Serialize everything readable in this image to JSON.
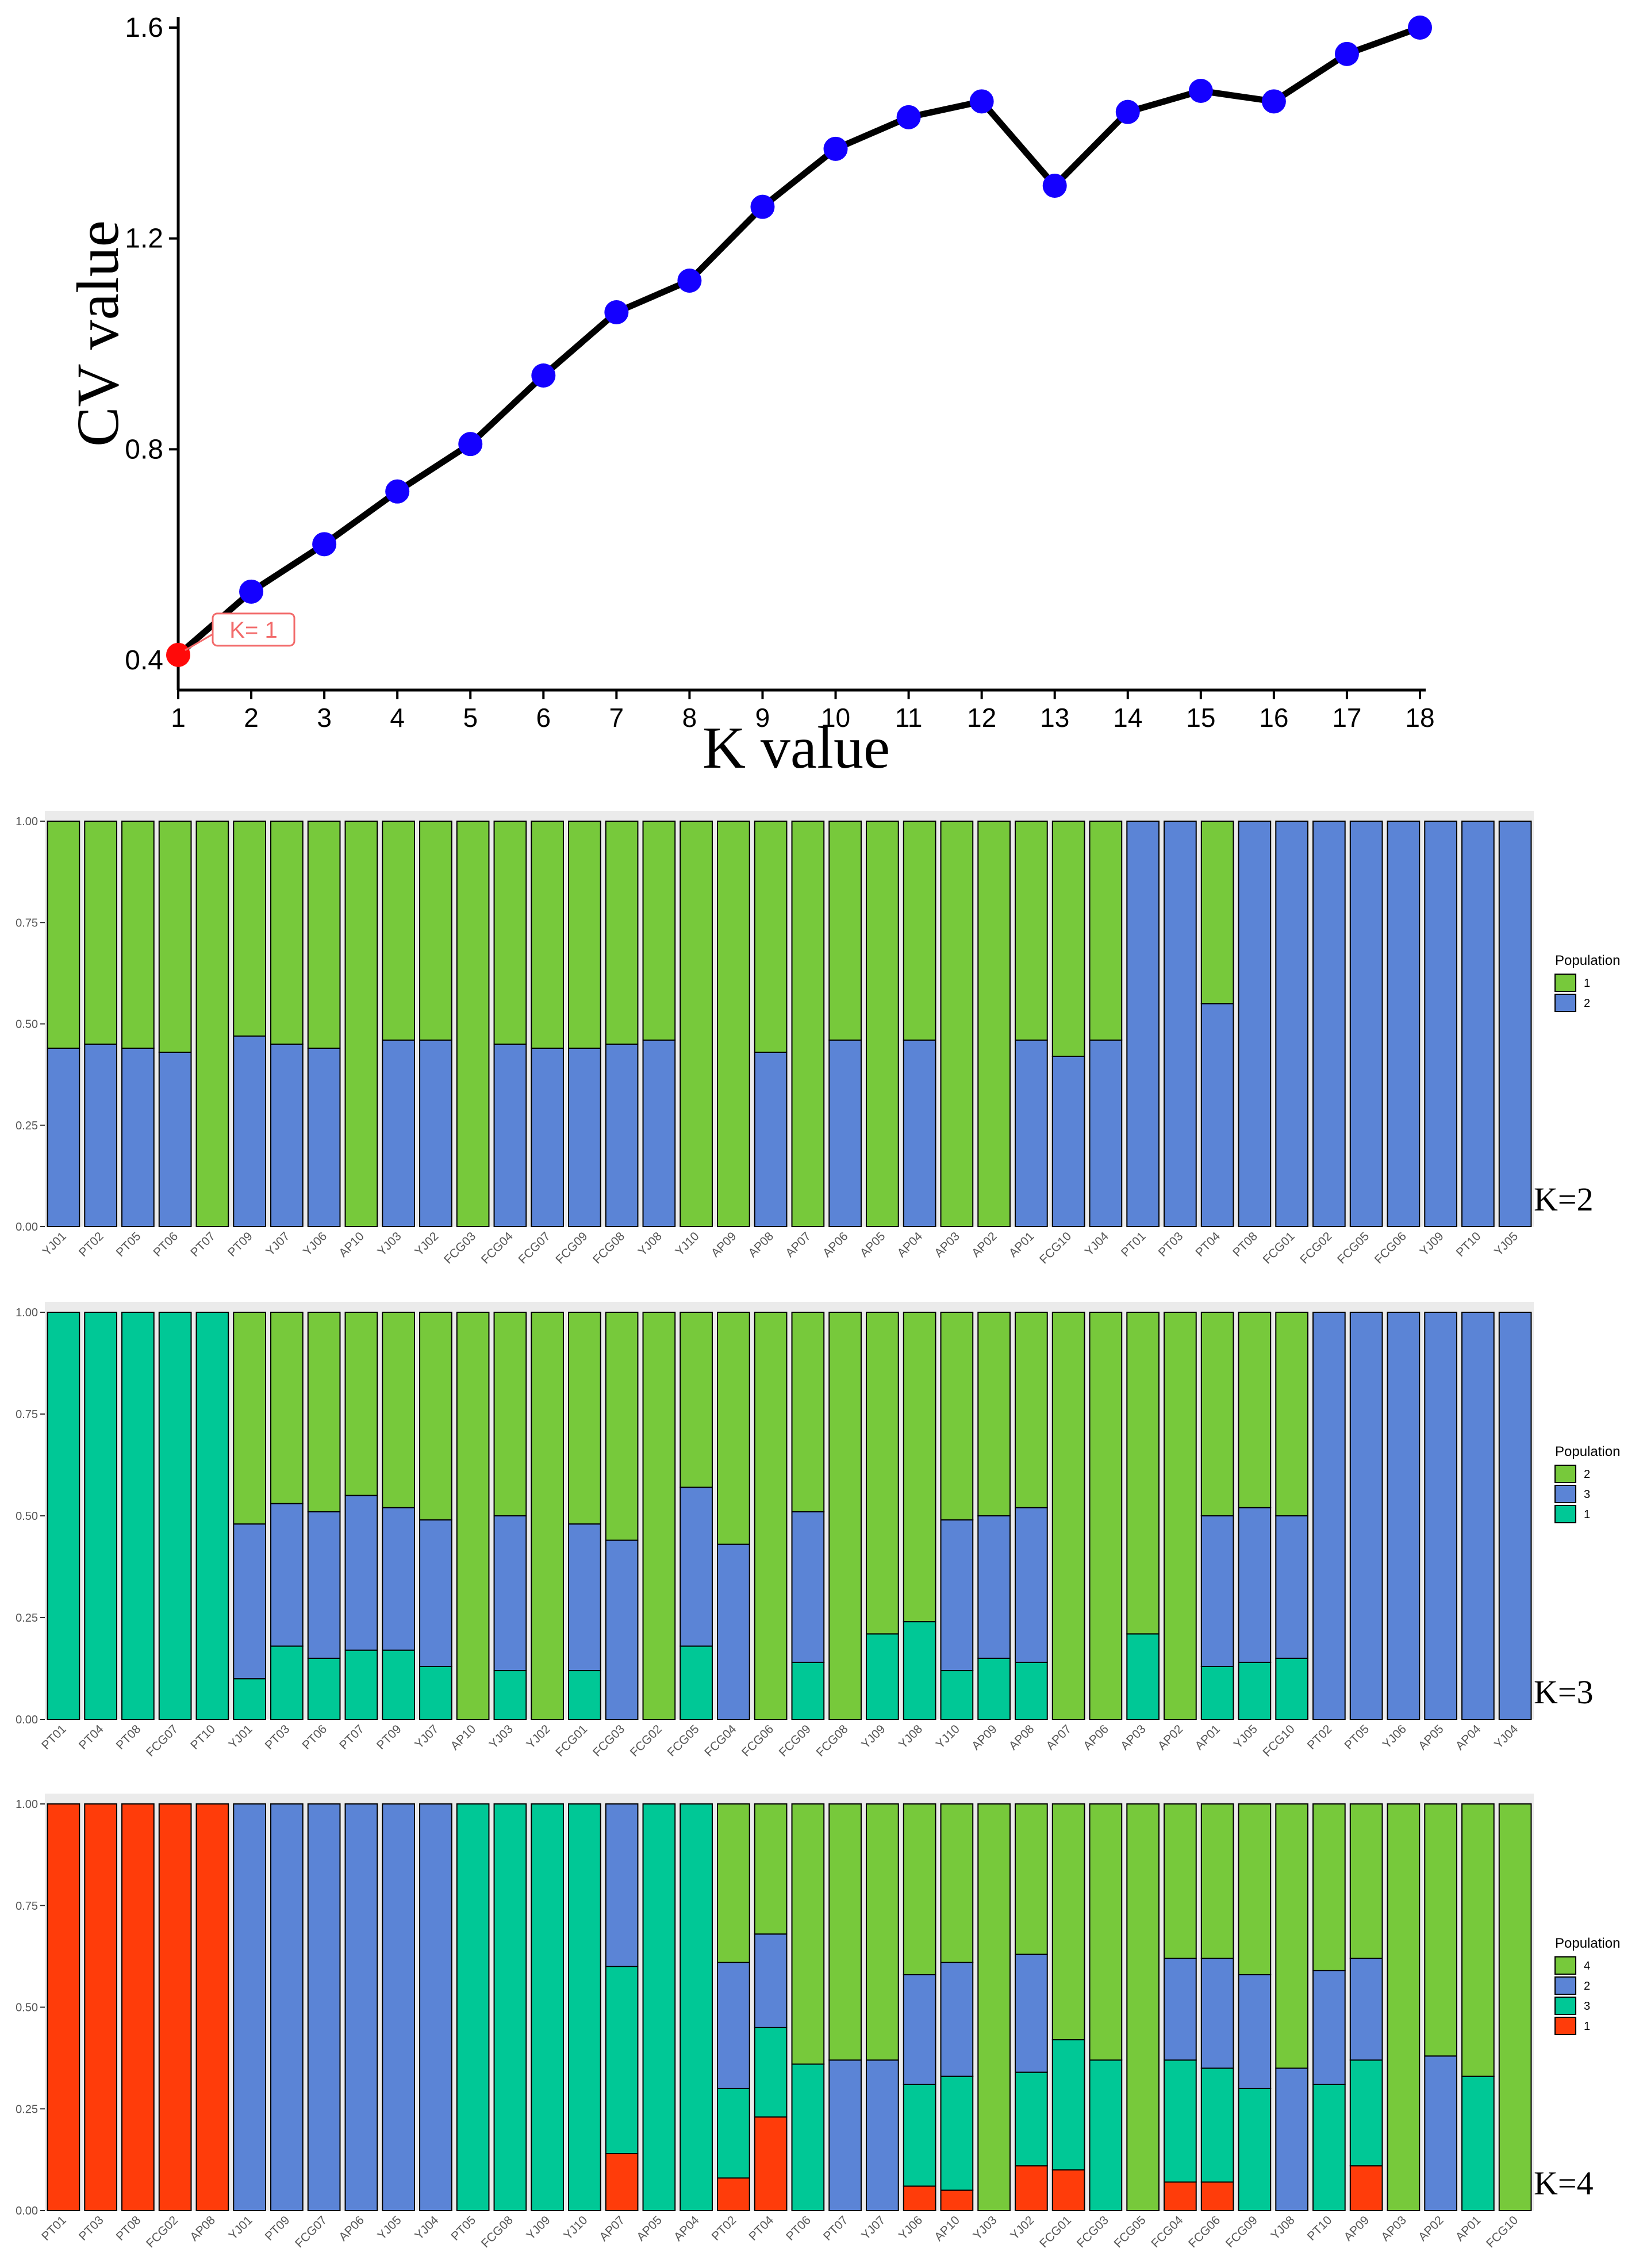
{
  "chart_data": [
    {
      "type": "line",
      "title": "",
      "xlabel": "K value",
      "ylabel": "CV value",
      "x": [
        1,
        2,
        3,
        4,
        5,
        6,
        7,
        8,
        9,
        10,
        11,
        12,
        13,
        14,
        15,
        16,
        17,
        18
      ],
      "y": [
        0.41,
        0.53,
        0.62,
        0.72,
        0.81,
        0.94,
        1.06,
        1.12,
        1.26,
        1.37,
        1.43,
        1.46,
        1.3,
        1.44,
        1.48,
        1.46,
        1.55,
        1.6
      ],
      "xlim": [
        1,
        18
      ],
      "ylim": [
        0.35,
        1.6
      ],
      "yticks": [
        "0.4",
        "0.8",
        "1.2",
        "1.6"
      ],
      "line_color": "#000000",
      "point_color": "#1400ff",
      "highlight_color": "#ff0a0a",
      "highlight_index": 0,
      "annotation": "K= 1",
      "annotation_color": "#f26a6a"
    },
    {
      "type": "bar",
      "stacked": true,
      "panel_label": "K=2",
      "ylim": [
        0,
        1
      ],
      "yticks": [
        "0.00",
        "0.25",
        "0.50",
        "0.75",
        "1.00"
      ],
      "legend": {
        "title": "Population",
        "entries": [
          {
            "label": "1",
            "color": "#77c93b"
          },
          {
            "label": "2",
            "color": "#5b84d6"
          }
        ]
      },
      "stack_order": [
        "2",
        "1"
      ],
      "categories": [
        "YJ01",
        "PT02",
        "PT05",
        "PT06",
        "PT07",
        "PT09",
        "YJ07",
        "YJ06",
        "AP10",
        "YJ03",
        "YJ02",
        "FCG03",
        "FCG04",
        "FCG07",
        "FCG09",
        "FCG08",
        "YJ08",
        "YJ10",
        "AP09",
        "AP08",
        "AP07",
        "AP06",
        "AP05",
        "AP04",
        "AP03",
        "AP02",
        "AP01",
        "FCG10",
        "YJ04",
        "PT01",
        "PT03",
        "PT04",
        "PT08",
        "FCG01",
        "FCG02",
        "FCG05",
        "FCG06",
        "YJ09",
        "PT10",
        "YJ05"
      ],
      "series": [
        {
          "name": "2",
          "values": [
            0.44,
            0.45,
            0.44,
            0.43,
            0,
            0.47,
            0.45,
            0.44,
            0,
            0.46,
            0.46,
            0,
            0.45,
            0.44,
            0.44,
            0.45,
            0.46,
            0,
            0,
            0.43,
            0,
            0.46,
            0,
            0.46,
            0,
            0,
            0.46,
            0.42,
            0.46,
            1,
            1,
            0.55,
            1,
            1,
            1,
            1,
            1,
            1,
            1,
            1
          ]
        },
        {
          "name": "1",
          "values": [
            0.56,
            0.55,
            0.56,
            0.57,
            1,
            0.53,
            0.55,
            0.56,
            1,
            0.54,
            0.54,
            1,
            0.55,
            0.56,
            0.56,
            0.55,
            0.54,
            1,
            1,
            0.57,
            1,
            0.54,
            1,
            0.54,
            1,
            1,
            0.54,
            0.58,
            0.54,
            0,
            0,
            0.45,
            0,
            0,
            0,
            0,
            0,
            0,
            0,
            0
          ]
        }
      ]
    },
    {
      "type": "bar",
      "stacked": true,
      "panel_label": "K=3",
      "ylim": [
        0,
        1
      ],
      "yticks": [
        "0.00",
        "0.25",
        "0.50",
        "0.75",
        "1.00"
      ],
      "legend": {
        "title": "Population",
        "entries": [
          {
            "label": "2",
            "color": "#77c93b"
          },
          {
            "label": "3",
            "color": "#5b84d6"
          },
          {
            "label": "1",
            "color": "#00c896"
          }
        ]
      },
      "stack_order": [
        "1",
        "3",
        "2"
      ],
      "categories": [
        "PT01",
        "PT04",
        "PT08",
        "FCG07",
        "PT10",
        "YJ01",
        "PT03",
        "PT06",
        "PT07",
        "PT09",
        "YJ07",
        "AP10",
        "YJ03",
        "YJ02",
        "FCG01",
        "FCG03",
        "FCG02",
        "FCG05",
        "FCG04",
        "FCG06",
        "FCG09",
        "FCG08",
        "YJ09",
        "YJ08",
        "YJ10",
        "AP09",
        "AP08",
        "AP07",
        "AP06",
        "AP03",
        "AP02",
        "AP01",
        "YJ05",
        "FCG10",
        "PT02",
        "PT05",
        "YJ06",
        "AP05",
        "AP04",
        "YJ04"
      ],
      "series": [
        {
          "name": "1",
          "values": [
            1,
            1,
            1,
            1,
            1,
            0.1,
            0.18,
            0.15,
            0.17,
            0.17,
            0.13,
            0,
            0.12,
            0,
            0.12,
            0,
            0,
            0.18,
            0,
            0,
            0.14,
            0,
            0.21,
            0.24,
            0.12,
            0.15,
            0.14,
            0,
            0,
            0.21,
            0,
            0.13,
            0.14,
            0.15,
            0,
            0,
            0,
            0,
            0,
            0
          ]
        },
        {
          "name": "3",
          "values": [
            0,
            0,
            0,
            0,
            0,
            0.38,
            0.35,
            0.36,
            0.38,
            0.35,
            0.36,
            0,
            0.38,
            0,
            0.36,
            0.44,
            0,
            0.39,
            0.43,
            0,
            0.37,
            0,
            0,
            0,
            0.37,
            0.35,
            0.38,
            0,
            0,
            0,
            0,
            0.37,
            0.38,
            0.35,
            1,
            1,
            1,
            1,
            1,
            1
          ]
        },
        {
          "name": "2",
          "values": [
            0,
            0,
            0,
            0,
            0,
            0.52,
            0.47,
            0.49,
            0.45,
            0.48,
            0.51,
            1,
            0.5,
            1,
            0.52,
            0.56,
            1,
            0.43,
            0.57,
            1,
            0.49,
            1,
            0.79,
            0.76,
            0.51,
            0.5,
            0.48,
            1,
            1,
            0.79,
            1,
            0.5,
            0.48,
            0.5,
            0,
            0,
            0,
            0,
            0,
            0
          ]
        }
      ]
    },
    {
      "type": "bar",
      "stacked": true,
      "panel_label": "K=4",
      "ylim": [
        0,
        1
      ],
      "yticks": [
        "0.00",
        "0.25",
        "0.50",
        "0.75",
        "1.00"
      ],
      "legend": {
        "title": "Population",
        "entries": [
          {
            "label": "4",
            "color": "#77c93b"
          },
          {
            "label": "2",
            "color": "#5b84d6"
          },
          {
            "label": "3",
            "color": "#00c896"
          },
          {
            "label": "1",
            "color": "#ff3c0a"
          }
        ]
      },
      "stack_order": [
        "1",
        "3",
        "2",
        "4"
      ],
      "categories": [
        "PT01",
        "PT03",
        "PT08",
        "FCG02",
        "AP08",
        "YJ01",
        "PT09",
        "FCG07",
        "AP06",
        "YJ05",
        "YJ04",
        "PT05",
        "FCG08",
        "YJ09",
        "YJ10",
        "AP07",
        "AP05",
        "AP04",
        "PT02",
        "PT04",
        "PT06",
        "PT07",
        "YJ07",
        "YJ06",
        "AP10",
        "YJ03",
        "YJ02",
        "FCG01",
        "FCG03",
        "FCG05",
        "FCG04",
        "FCG06",
        "FCG09",
        "YJ08",
        "PT10",
        "AP09",
        "AP03",
        "AP02",
        "AP01",
        "FCG10"
      ],
      "series": [
        {
          "name": "1",
          "values": [
            1,
            1,
            1,
            1,
            1,
            0,
            0,
            0,
            0,
            0,
            0,
            0,
            0,
            0,
            0,
            0.14,
            0,
            0,
            0.08,
            0.23,
            0,
            0,
            0,
            0.06,
            0.05,
            0,
            0.11,
            0.1,
            0,
            0,
            0.07,
            0.07,
            0,
            0,
            0,
            0.11,
            0,
            0,
            0,
            0
          ]
        },
        {
          "name": "3",
          "values": [
            0,
            0,
            0,
            0,
            0,
            0,
            0,
            0,
            0,
            0,
            0,
            1,
            1,
            1,
            1,
            0.46,
            1,
            1,
            0.22,
            0.22,
            0.36,
            0,
            0,
            0.25,
            0.28,
            0,
            0.23,
            0.32,
            0.37,
            0,
            0.3,
            0.28,
            0.3,
            0,
            0.31,
            0.26,
            0,
            0,
            0.33,
            0
          ]
        },
        {
          "name": "2",
          "values": [
            0,
            0,
            0,
            0,
            0,
            1,
            1,
            1,
            1,
            1,
            1,
            0,
            0,
            0,
            0,
            0.4,
            0,
            0,
            0.31,
            0.23,
            0,
            0.37,
            0.37,
            0.27,
            0.28,
            0,
            0.29,
            0,
            0,
            0,
            0.25,
            0.27,
            0.28,
            0.35,
            0.28,
            0.25,
            0,
            0.38,
            0,
            0
          ]
        },
        {
          "name": "4",
          "values": [
            0,
            0,
            0,
            0,
            0,
            0,
            0,
            0,
            0,
            0,
            0,
            0,
            0,
            0,
            0,
            0,
            0,
            0,
            0.39,
            0.32,
            0.64,
            0.63,
            0.63,
            0.42,
            0.39,
            1,
            0.37,
            0.58,
            0.63,
            1,
            0.38,
            0.38,
            0.42,
            0.65,
            0.41,
            0.38,
            1,
            0.62,
            0.67,
            1
          ]
        }
      ]
    }
  ]
}
